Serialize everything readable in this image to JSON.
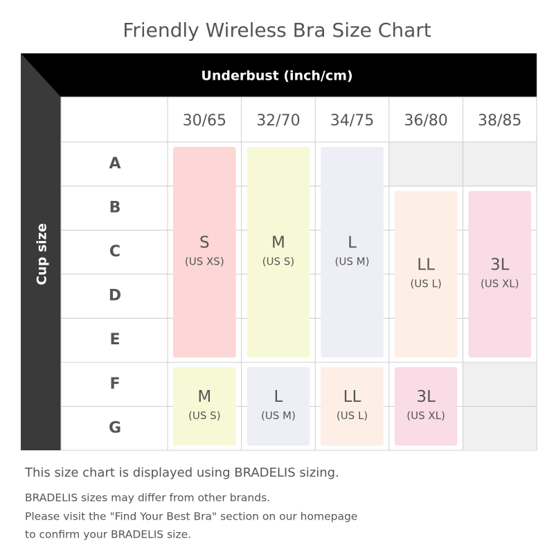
{
  "title": "Friendly Wireless Bra Size Chart",
  "header": {
    "top": "Underbust (inch/cm)",
    "side": "Cup size"
  },
  "table": {
    "columns": [
      "30/65",
      "32/70",
      "34/75",
      "36/80",
      "38/85"
    ],
    "rows": [
      "A",
      "B",
      "C",
      "D",
      "E",
      "F",
      "G"
    ],
    "blocks": [
      {
        "size": "S",
        "us": "(US XS)",
        "column": "30/65",
        "cups": [
          "A",
          "B",
          "C",
          "D",
          "E"
        ],
        "color": "#fdd6d6"
      },
      {
        "size": "M",
        "us": "(US S)",
        "column": "32/70",
        "cups": [
          "A",
          "B",
          "C",
          "D",
          "E"
        ],
        "color": "#f7f9d6"
      },
      {
        "size": "L",
        "us": "(US M)",
        "column": "34/75",
        "cups": [
          "A",
          "B",
          "C",
          "D",
          "E"
        ],
        "color": "#eeeef7"
      },
      {
        "size": "LL",
        "us": "(US L)",
        "column": "36/80",
        "cups": [
          "B",
          "C",
          "D",
          "E"
        ],
        "color": "#fdefe5"
      },
      {
        "size": "3L",
        "us": "(US XL)",
        "column": "38/85",
        "cups": [
          "B",
          "C",
          "D",
          "E"
        ],
        "color": "#f9dce6"
      },
      {
        "size": "M",
        "us": "(US S)",
        "column": "30/65",
        "cups": [
          "F",
          "G"
        ],
        "color": "#f7f9d6"
      },
      {
        "size": "L",
        "us": "(US M)",
        "column": "32/70",
        "cups": [
          "F",
          "G"
        ],
        "color": "#eeeef7"
      },
      {
        "size": "LL",
        "us": "(US L)",
        "column": "34/75",
        "cups": [
          "F",
          "G"
        ],
        "color": "#fdefe5"
      },
      {
        "size": "3L",
        "us": "(US XL)",
        "column": "36/80",
        "cups": [
          "F",
          "G"
        ],
        "color": "#f9dce6"
      }
    ]
  },
  "notes": {
    "main": "This size chart is displayed using BRADELIS sizing.",
    "lines": [
      "BRADELIS sizes may differ from other brands.",
      "Please visit the \"Find Your Best Bra\" section on our homepage",
      "to confirm your BRADELIS size."
    ]
  }
}
